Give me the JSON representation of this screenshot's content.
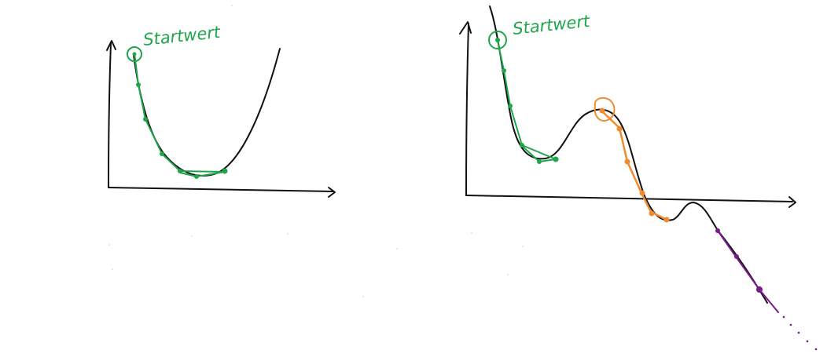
{
  "colors": {
    "background": "#ffffff",
    "ink": "#111111",
    "start": "#1fa64a",
    "escape": "#f08a2c",
    "continue": "#7a1a8c"
  },
  "diagrams": [
    {
      "start_label": "Startwert",
      "curve": "convex-bowl",
      "path_color": "start"
    },
    {
      "start_label": "Startwert",
      "curve": "multiple-local-minima",
      "path_colors": [
        "start",
        "escape",
        "continue"
      ]
    }
  ]
}
